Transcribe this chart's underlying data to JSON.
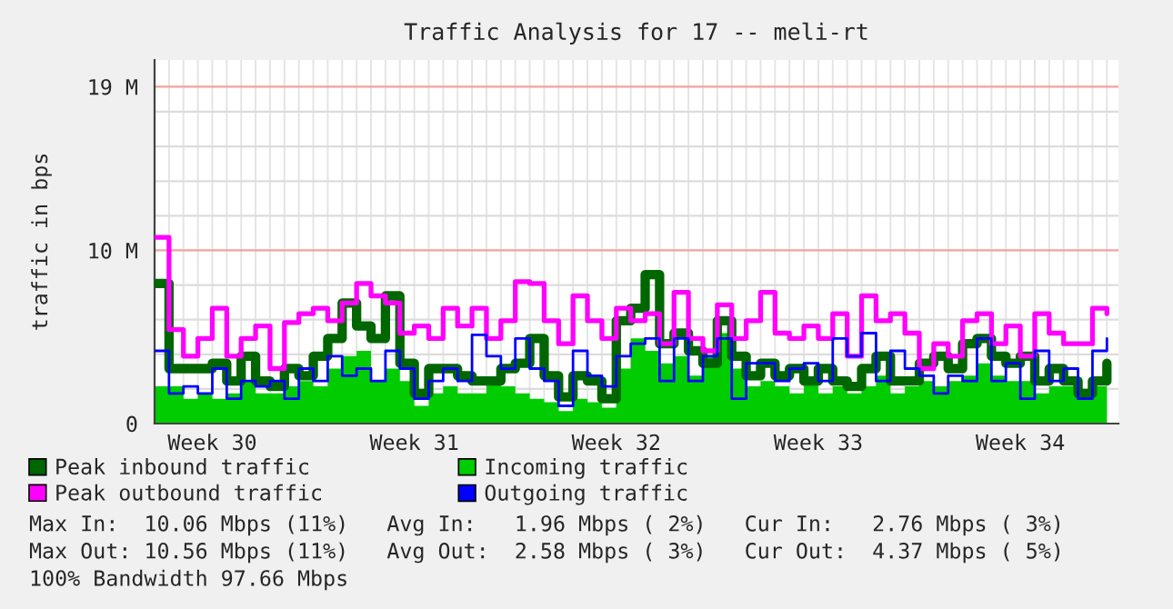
{
  "chart_data": {
    "type": "step",
    "title": "Traffic Analysis for 17 -- meli-rt",
    "ylabel": "traffic in bps",
    "categories": [
      null,
      null,
      null,
      null,
      "Week 30",
      null,
      null,
      null,
      null,
      null,
      null,
      null,
      null,
      null,
      null,
      null,
      null,
      null,
      "Week 31",
      null,
      null,
      null,
      null,
      null,
      null,
      null,
      null,
      null,
      null,
      null,
      null,
      null,
      "Week 32",
      null,
      null,
      null,
      null,
      null,
      null,
      null,
      null,
      null,
      null,
      null,
      null,
      null,
      "Week 33",
      null,
      null,
      null,
      null,
      null,
      null,
      null,
      null,
      null,
      null,
      null,
      null,
      null,
      "Week 34",
      null,
      null,
      null,
      null,
      null,
      null
    ],
    "series": [
      {
        "name": "Peak inbound traffic",
        "color": "#006600",
        "values": [
          7.9,
          3.1,
          3.1,
          3.1,
          3.4,
          2.4,
          3.8,
          2.4,
          2.1,
          3.1,
          2.7,
          3.8,
          4.8,
          6.8,
          5.5,
          4.8,
          7.2,
          3.4,
          1.7,
          3.1,
          3.1,
          2.7,
          2.4,
          2.4,
          3.1,
          3.4,
          4.8,
          2.7,
          1.5,
          2.7,
          2.4,
          1.4,
          5.8,
          6.5,
          8.4,
          4.5,
          5.1,
          4.1,
          3.4,
          5.8,
          3.8,
          2.7,
          3.4,
          2.7,
          3.1,
          2.4,
          3.1,
          2.4,
          2.1,
          3.1,
          3.8,
          2.4,
          2.4,
          3.4,
          3.8,
          3.1,
          4.5,
          4.8,
          3.8,
          3.4,
          3.8,
          2.4,
          3.1,
          2.4,
          1.7,
          2.4,
          3.4
        ]
      },
      {
        "name": "Incoming traffic",
        "type": "area",
        "color": "#00cc00",
        "values": [
          2.1,
          2.1,
          1.4,
          1.7,
          1.4,
          1.7,
          2.4,
          1.7,
          1.7,
          2.1,
          2.4,
          2.1,
          3.1,
          3.8,
          4.1,
          2.4,
          3.1,
          2.4,
          1.0,
          1.7,
          2.1,
          1.7,
          1.7,
          2.2,
          2.1,
          1.7,
          1.4,
          1.2,
          0.7,
          1.4,
          1.2,
          0.9,
          3.1,
          4.8,
          4.1,
          3.4,
          3.8,
          2.7,
          3.8,
          5.1,
          3.1,
          2.1,
          2.4,
          2.1,
          1.7,
          2.4,
          1.7,
          2.1,
          1.7,
          2.1,
          2.7,
          1.7,
          2.1,
          2.4,
          2.1,
          2.4,
          2.7,
          3.4,
          2.7,
          2.4,
          2.4,
          1.7,
          2.1,
          2.1,
          1.4,
          2.1,
          3.1
        ]
      },
      {
        "name": "Peak outbound traffic",
        "color": "#ff00ff",
        "values": [
          10.5,
          5.3,
          3.8,
          4.8,
          6.5,
          3.8,
          4.8,
          5.5,
          3.1,
          5.7,
          6.2,
          6.5,
          5.8,
          6.8,
          7.9,
          7.2,
          6.8,
          5.1,
          5.5,
          4.8,
          6.5,
          5.5,
          6.5,
          4.8,
          5.8,
          8.0,
          7.9,
          5.8,
          4.5,
          7.2,
          5.8,
          4.8,
          6.5,
          5.8,
          6.2,
          4.5,
          7.4,
          4.8,
          4.1,
          6.7,
          4.8,
          5.8,
          7.4,
          5.1,
          4.8,
          5.5,
          4.8,
          6.2,
          3.8,
          7.2,
          5.8,
          6.2,
          5.1,
          3.1,
          4.5,
          3.8,
          5.8,
          6.2,
          4.5,
          5.5,
          3.8,
          6.2,
          5.1,
          4.5,
          4.5,
          6.5,
          6.2
        ]
      },
      {
        "name": "Outgoing traffic",
        "color": "#0000ff",
        "values": [
          4.1,
          1.7,
          2.1,
          1.7,
          3.1,
          1.4,
          2.4,
          2.1,
          2.4,
          1.4,
          3.1,
          2.4,
          3.8,
          2.7,
          3.1,
          2.4,
          4.1,
          3.1,
          1.4,
          2.4,
          3.1,
          2.4,
          5.0,
          3.8,
          3.1,
          4.8,
          3.1,
          2.4,
          1.0,
          4.1,
          2.7,
          2.1,
          3.8,
          4.5,
          4.8,
          2.4,
          4.8,
          2.4,
          3.8,
          4.8,
          1.4,
          3.4,
          3.4,
          2.4,
          3.1,
          3.4,
          2.4,
          4.8,
          3.8,
          5.1,
          2.4,
          4.1,
          3.1,
          2.7,
          1.7,
          2.7,
          2.4,
          4.8,
          2.4,
          3.4,
          1.4,
          4.1,
          2.4,
          3.1,
          1.4,
          4.1,
          4.8
        ]
      }
    ],
    "ylim": [
      0,
      20.5
    ],
    "yticks": [
      0,
      {
        "value": 9.766,
        "label": "10 M"
      },
      {
        "value": 19,
        "label": "19 M"
      },
      {
        "value": 1.953,
        "label": null
      },
      {
        "value": 3.906,
        "label": null
      },
      {
        "value": 5.859,
        "label": null
      },
      {
        "value": 7.812,
        "label": null
      },
      {
        "value": 11.72,
        "label": null
      },
      {
        "value": 13.67,
        "label": null
      },
      {
        "value": 15.62,
        "label": null
      },
      {
        "value": 17.58,
        "label": null
      }
    ],
    "grid": true,
    "legend": "bottom",
    "annotations": [
      "Max In:  10.06 Mbps (11%)   Avg In:   1.96 Mbps ( 2%)   Cur In:   2.76 Mbps ( 3%)",
      "Max Out: 10.56 Mbps (11%)   Avg Out:  2.58 Mbps ( 3%)   Cur Out:  4.37 Mbps ( 5%)",
      "100% Bandwidth 97.66 Mbps"
    ]
  }
}
